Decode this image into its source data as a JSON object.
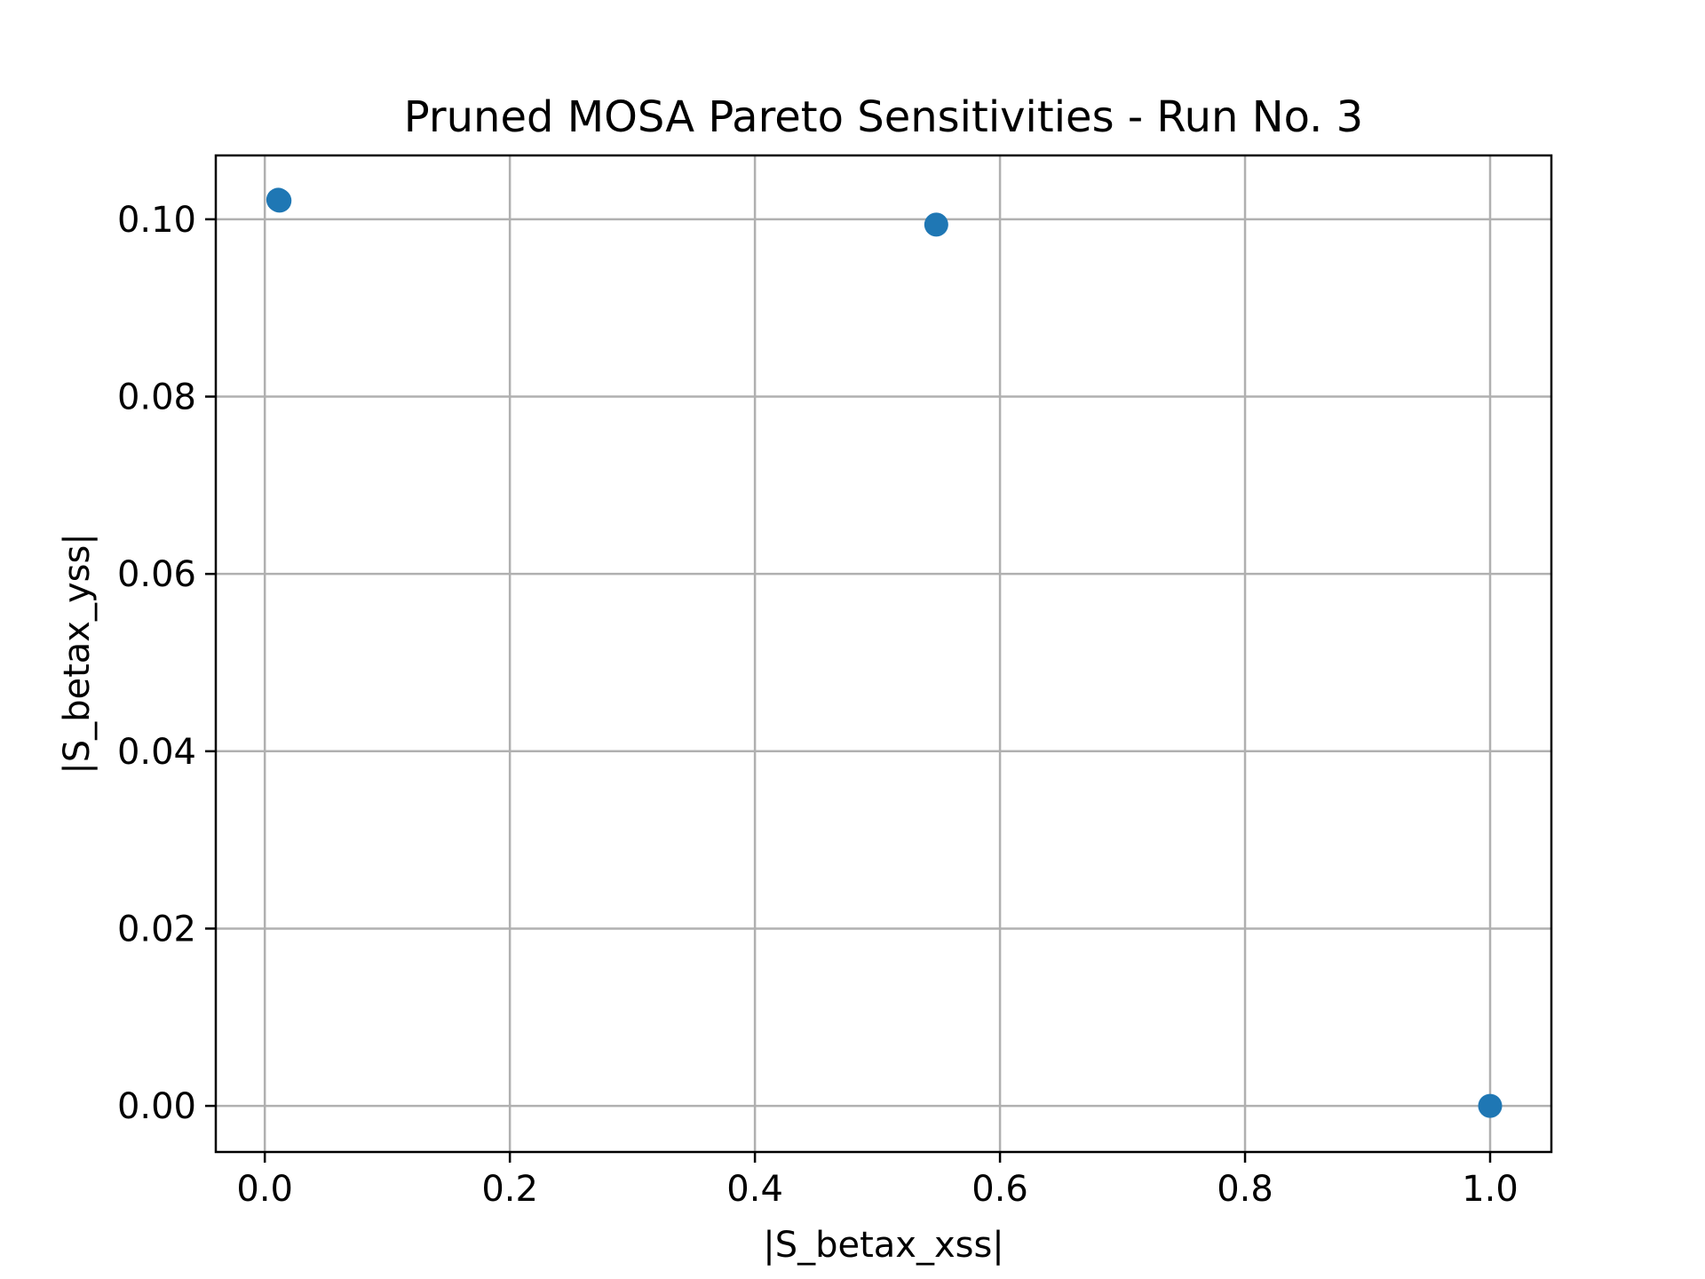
{
  "chart_data": {
    "type": "scatter",
    "title": "Pruned MOSA Pareto Sensitivities - Run No. 3",
    "xlabel": "|S_betax_xss|",
    "ylabel": "|S_betax_yss|",
    "xlim": [
      -0.04,
      1.05
    ],
    "ylim": [
      -0.0052,
      0.1072
    ],
    "xticks": [
      0.0,
      0.2,
      0.4,
      0.6,
      0.8,
      1.0
    ],
    "xtick_labels": [
      "0.0",
      "0.2",
      "0.4",
      "0.6",
      "0.8",
      "1.0"
    ],
    "yticks": [
      0.0,
      0.02,
      0.04,
      0.06,
      0.08,
      0.1
    ],
    "ytick_labels": [
      "0.00",
      "0.02",
      "0.04",
      "0.06",
      "0.08",
      "0.10"
    ],
    "grid": true,
    "marker_color": "#1f77b4",
    "series": [
      {
        "points": [
          {
            "x": 0.011,
            "y": 0.1022
          },
          {
            "x": 0.012,
            "y": 0.1021
          },
          {
            "x": 0.548,
            "y": 0.0994
          },
          {
            "x": 1.0,
            "y": 0.0
          }
        ]
      }
    ]
  }
}
